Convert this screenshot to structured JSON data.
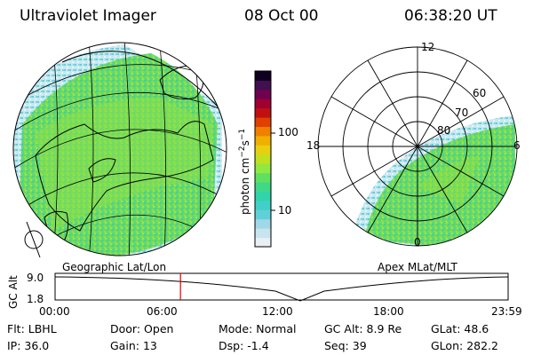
{
  "header": {
    "instrument": "Ultraviolet Imager",
    "date": "08 Oct 00",
    "time": "06:38:20 UT"
  },
  "left_panel": {
    "label": "Geographic Lat/Lon"
  },
  "right_panel": {
    "label": "Apex MLat/MLT",
    "mlt_labels": [
      "12",
      "18",
      "6",
      "0"
    ],
    "mlat_labels": [
      "60",
      "70",
      "80"
    ]
  },
  "colorbar": {
    "unit_text": "photon cm",
    "unit_sup1": "−2",
    "unit_s": "s",
    "unit_sup2": "−1",
    "ticks": [
      {
        "value": 100,
        "label": "100"
      },
      {
        "value": 10,
        "label": "10"
      }
    ],
    "colors": [
      "#e8f0f5",
      "#c8e4ef",
      "#a0d8e8",
      "#60d0d8",
      "#40d0c8",
      "#30d4a8",
      "#40d888",
      "#60e060",
      "#90e840",
      "#c0e020",
      "#e8d010",
      "#f0b000",
      "#f08000",
      "#e04000",
      "#c01010",
      "#a00030",
      "#700050",
      "#401050",
      "#100020"
    ]
  },
  "gc_alt_plot": {
    "axis_label": "GC Alt",
    "y_ticks": [
      "9.0",
      "1.8"
    ],
    "x_ticks": [
      "00:00",
      "06:00",
      "12:00",
      "18:00",
      "23:59"
    ],
    "current_time_hours": 6.639
  },
  "info": {
    "row1": [
      {
        "key": "Flt:",
        "val": "LBHL"
      },
      {
        "key": "Door:",
        "val": "Open"
      },
      {
        "key": "Mode:",
        "val": "Normal"
      },
      {
        "key": "GC Alt:",
        "val": "8.9 Re"
      },
      {
        "key": "GLat:",
        "val": "48.6"
      }
    ],
    "row2": [
      {
        "key": "IP:",
        "val": "36.0"
      },
      {
        "key": "Gain:",
        "val": "13"
      },
      {
        "key": "Dsp:",
        "val": "-1.4"
      },
      {
        "key": "Seq:",
        "val": "39"
      },
      {
        "key": "GLon:",
        "val": "282.2"
      }
    ]
  }
}
